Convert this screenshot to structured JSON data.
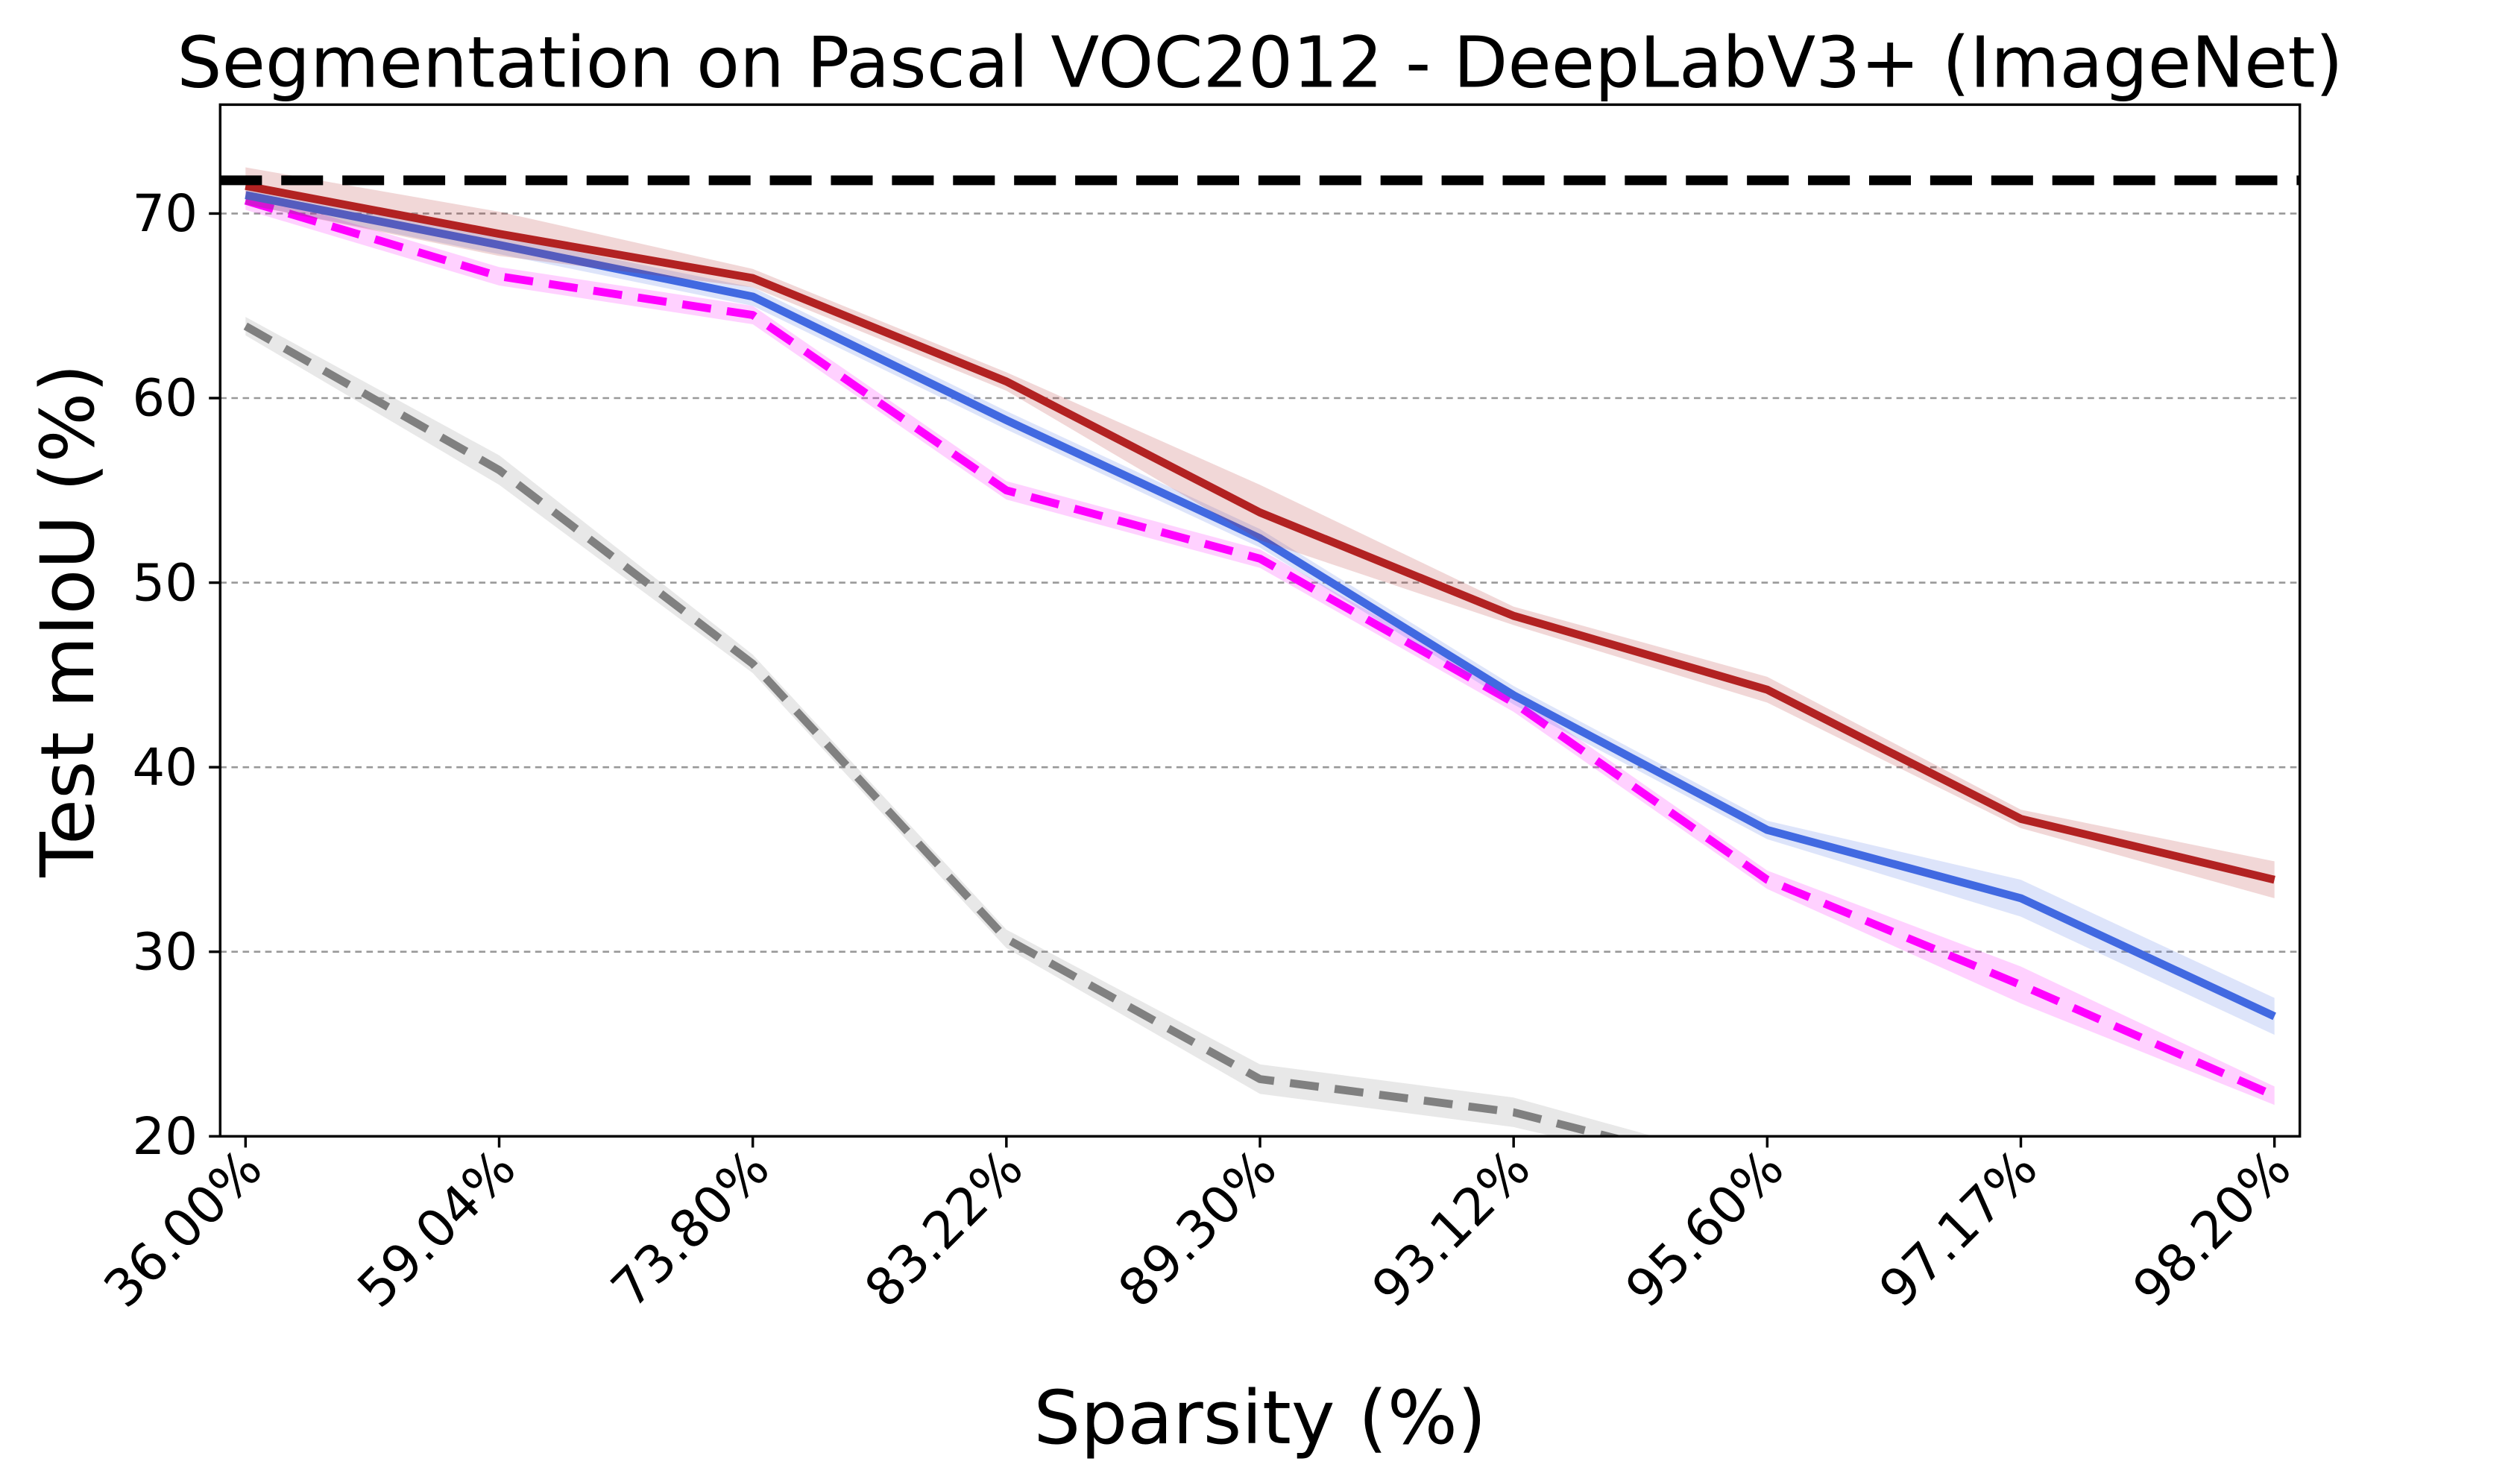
{
  "chart_data": {
    "type": "line",
    "title": "Segmentation on Pascal VOC2012 - DeepLabV3+ (ImageNet)",
    "x_label": "Sparsity (%)",
    "y_label": "Test mIoU (%)",
    "categories": [
      "36.00%",
      "59.04%",
      "73.80%",
      "83.22%",
      "89.30%",
      "93.12%",
      "95.60%",
      "97.17%",
      "98.20%"
    ],
    "series": [
      {
        "color": "#808080",
        "dashed": true,
        "values": [
          63.9,
          56.1,
          45.6,
          30.7,
          23.1,
          21.3,
          17.8,
          null,
          null
        ],
        "errors": [
          0.5,
          0.8,
          0.5,
          0.5,
          0.8,
          0.8,
          0.5,
          null,
          null
        ]
      },
      {
        "color": "#ff00ff",
        "dashed": true,
        "values": [
          70.7,
          66.6,
          64.5,
          55.0,
          51.3,
          43.5,
          33.9,
          28.2,
          22.2
        ],
        "errors": [
          0.5,
          0.5,
          0.5,
          0.5,
          0.5,
          0.5,
          0.5,
          1.0,
          0.5
        ]
      },
      {
        "color": "#4169e1",
        "dashed": false,
        "values": [
          71.0,
          68.3,
          65.5,
          58.8,
          52.4,
          43.9,
          36.6,
          32.9,
          26.5
        ],
        "errors": [
          0.5,
          0.5,
          0.5,
          0.5,
          0.5,
          0.5,
          0.5,
          1.0,
          1.0
        ]
      },
      {
        "color": "#b22222",
        "dashed": false,
        "values": [
          71.5,
          68.9,
          66.5,
          60.9,
          53.8,
          48.2,
          44.2,
          37.2,
          33.9
        ],
        "errors": [
          1.0,
          1.2,
          0.5,
          0.5,
          1.5,
          0.5,
          0.7,
          0.5,
          1.0
        ]
      }
    ],
    "reference_line": {
      "value": 71.8,
      "color": "#000000",
      "dashed": true
    },
    "ylim": [
      20,
      75.9
    ],
    "yticks": [
      20,
      30,
      40,
      50,
      60,
      70
    ],
    "grid": true
  }
}
